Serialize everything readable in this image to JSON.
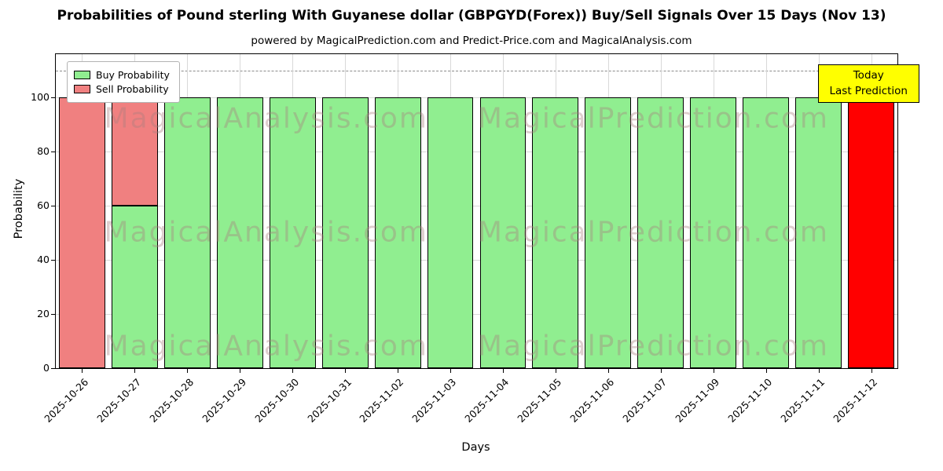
{
  "header": {
    "title": "Probabilities of Pound sterling With Guyanese dollar (GBPGYD(Forex)) Buy/Sell Signals Over 15 Days (Nov 13)",
    "subtitle": "powered by MagicalPrediction.com and Predict-Price.com and MagicalAnalysis.com"
  },
  "legend": {
    "items": [
      {
        "label": "Buy Probability",
        "color": "#90ee90"
      },
      {
        "label": "Sell Probability",
        "color": "#f08080"
      }
    ]
  },
  "annotation": {
    "line1": "Today",
    "line2": "Last Prediction",
    "bg_color": "#ffff00"
  },
  "watermarks": {
    "left_text": "MagicalAnalysis.com",
    "right_text": "MagicalPrediction.com"
  },
  "axes": {
    "xlabel": "Days",
    "ylabel": "Probability",
    "yticks": [
      0,
      20,
      40,
      60,
      80,
      100
    ],
    "ymax": 116,
    "dashed_threshold_y": 110,
    "grid": true
  },
  "chart_data": {
    "type": "bar",
    "stacked": true,
    "title": "Probabilities of Pound sterling With Guyanese dollar (GBPGYD(Forex)) Buy/Sell Signals Over 15 Days (Nov 13)",
    "xlabel": "Days",
    "ylabel": "Probability",
    "ylim": [
      0,
      116
    ],
    "legend_position": "upper left",
    "categories": [
      "2025-10-26",
      "2025-10-27",
      "2025-10-28",
      "2025-10-29",
      "2025-10-30",
      "2025-10-31",
      "2025-11-02",
      "2025-11-03",
      "2025-11-04",
      "2025-11-05",
      "2025-11-06",
      "2025-11-07",
      "2025-11-09",
      "2025-11-10",
      "2025-11-11",
      "2025-11-12"
    ],
    "series": [
      {
        "name": "Buy Probability",
        "color": "#90ee90",
        "values": [
          0,
          60,
          100,
          100,
          100,
          100,
          100,
          100,
          100,
          100,
          100,
          100,
          100,
          100,
          100,
          0
        ]
      },
      {
        "name": "Sell Probability",
        "color": "#f08080",
        "values": [
          100,
          40,
          0,
          0,
          0,
          0,
          0,
          0,
          0,
          0,
          0,
          0,
          0,
          0,
          0,
          0
        ]
      },
      {
        "name": "Last Prediction",
        "color": "#ff0000",
        "values": [
          0,
          0,
          0,
          0,
          0,
          0,
          0,
          0,
          0,
          0,
          0,
          0,
          0,
          0,
          0,
          100
        ]
      }
    ]
  }
}
